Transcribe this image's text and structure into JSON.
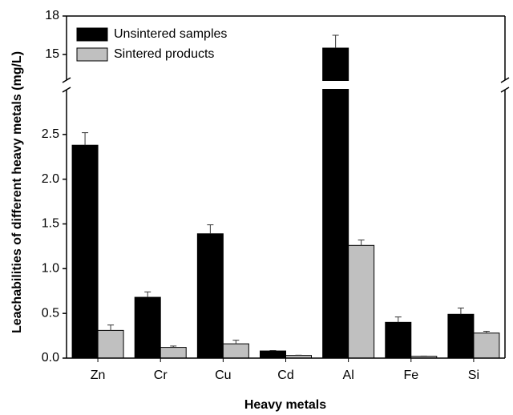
{
  "chart_data": {
    "type": "bar",
    "y_label": "Leachabilities of different heavy metals (mg/L)",
    "x_label": "Heavy metals",
    "categories": [
      "Zn",
      "Cr",
      "Cu",
      "Cd",
      "Al",
      "Fe",
      "Si"
    ],
    "series": [
      {
        "name": "Unsintered samples",
        "color": "#000000",
        "values": [
          2.38,
          0.68,
          1.39,
          0.08,
          15.5,
          0.4,
          0.49
        ],
        "errors": [
          0.14,
          0.06,
          0.1,
          0.005,
          1.0,
          0.06,
          0.07
        ]
      },
      {
        "name": "Sintered products",
        "color": "#c0c0c0",
        "values": [
          0.31,
          0.12,
          0.16,
          0.03,
          1.26,
          0.02,
          0.28
        ],
        "errors": [
          0.06,
          0.015,
          0.04,
          0.003,
          0.06,
          0.003,
          0.02
        ]
      }
    ],
    "ylim": [
      0,
      18
    ],
    "y_break": [
      3,
      13
    ],
    "yticks": [
      {
        "value": 0,
        "label": "0.0"
      },
      0.5,
      {
        "value": 1,
        "label": "1.0"
      },
      1.5,
      {
        "value": 2,
        "label": "2.0"
      },
      2.5,
      15,
      18
    ],
    "legend": "upper left"
  }
}
